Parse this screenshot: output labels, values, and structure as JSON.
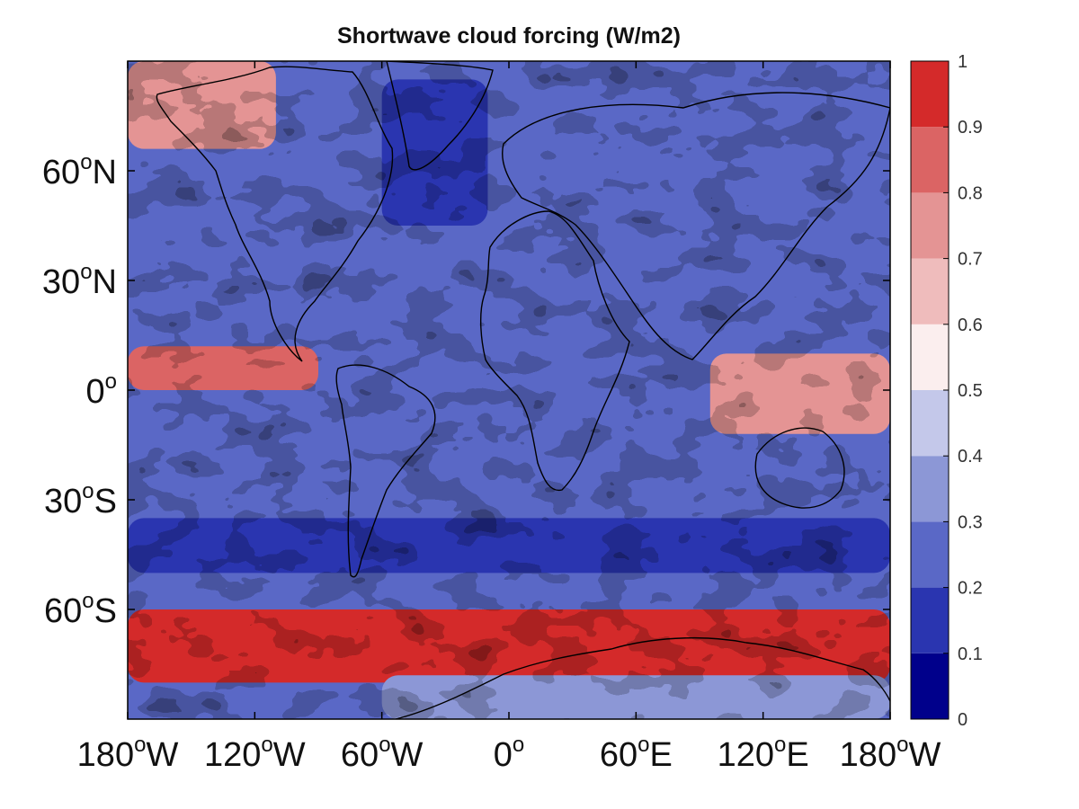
{
  "chart_data": {
    "type": "heatmap",
    "title": "Shortwave cloud forcing (W/m2)",
    "x_ticks": [
      {
        "value": -180,
        "label": "180",
        "sup": "o",
        "suffix": "W"
      },
      {
        "value": -120,
        "label": "120",
        "sup": "o",
        "suffix": "W"
      },
      {
        "value": -60,
        "label": "60",
        "sup": "o",
        "suffix": "W"
      },
      {
        "value": 0,
        "label": "0",
        "sup": "o",
        "suffix": ""
      },
      {
        "value": 60,
        "label": "60",
        "sup": "o",
        "suffix": "E"
      },
      {
        "value": 120,
        "label": "120",
        "sup": "o",
        "suffix": "E"
      },
      {
        "value": 180,
        "label": "180",
        "sup": "o",
        "suffix": "W"
      }
    ],
    "y_ticks": [
      {
        "value": 60,
        "label": "60",
        "sup": "o",
        "suffix": "N"
      },
      {
        "value": 30,
        "label": "30",
        "sup": "o",
        "suffix": "N"
      },
      {
        "value": 0,
        "label": "0",
        "sup": "o",
        "suffix": ""
      },
      {
        "value": -30,
        "label": "30",
        "sup": "o",
        "suffix": "S"
      },
      {
        "value": -60,
        "label": "60",
        "sup": "o",
        "suffix": "S"
      }
    ],
    "xlim": [
      -180,
      180
    ],
    "ylim": [
      -90,
      90
    ],
    "colorbar": {
      "range": [
        0,
        1
      ],
      "ticks": [
        "0",
        "0.1",
        "0.2",
        "0.3",
        "0.4",
        "0.5",
        "0.6",
        "0.7",
        "0.8",
        "0.9",
        "1"
      ],
      "colors": [
        "#00008b",
        "#2a35b0",
        "#5a68c6",
        "#8c97d6",
        "#c4c8ea",
        "#fbeeee",
        "#efbcbc",
        "#e49494",
        "#db6464",
        "#d42a2a"
      ]
    },
    "bands": [
      {
        "name": "arctic-north-pacific",
        "lat": [
          66,
          90
        ],
        "lon": [
          -180,
          -110
        ],
        "value": 0.75
      },
      {
        "name": "north-atlantic-low",
        "lat": [
          45,
          85
        ],
        "lon": [
          -60,
          -10
        ],
        "value": 0.15
      },
      {
        "name": "itcz-pacific",
        "lat": [
          0,
          12
        ],
        "lon": [
          -180,
          -90
        ],
        "value": 0.85
      },
      {
        "name": "maritime-continent",
        "lat": [
          -12,
          10
        ],
        "lon": [
          95,
          180
        ],
        "value": 0.75
      },
      {
        "name": "southern-subtropics",
        "lat": [
          -50,
          -35
        ],
        "lon": [
          -180,
          180
        ],
        "value": 0.15
      },
      {
        "name": "southern-ocean",
        "lat": [
          -80,
          -60
        ],
        "lon": [
          -180,
          180
        ],
        "value": 0.92
      },
      {
        "name": "antarctica",
        "lat": [
          -90,
          -78
        ],
        "lon": [
          -60,
          180
        ],
        "value": 0.35
      }
    ]
  }
}
